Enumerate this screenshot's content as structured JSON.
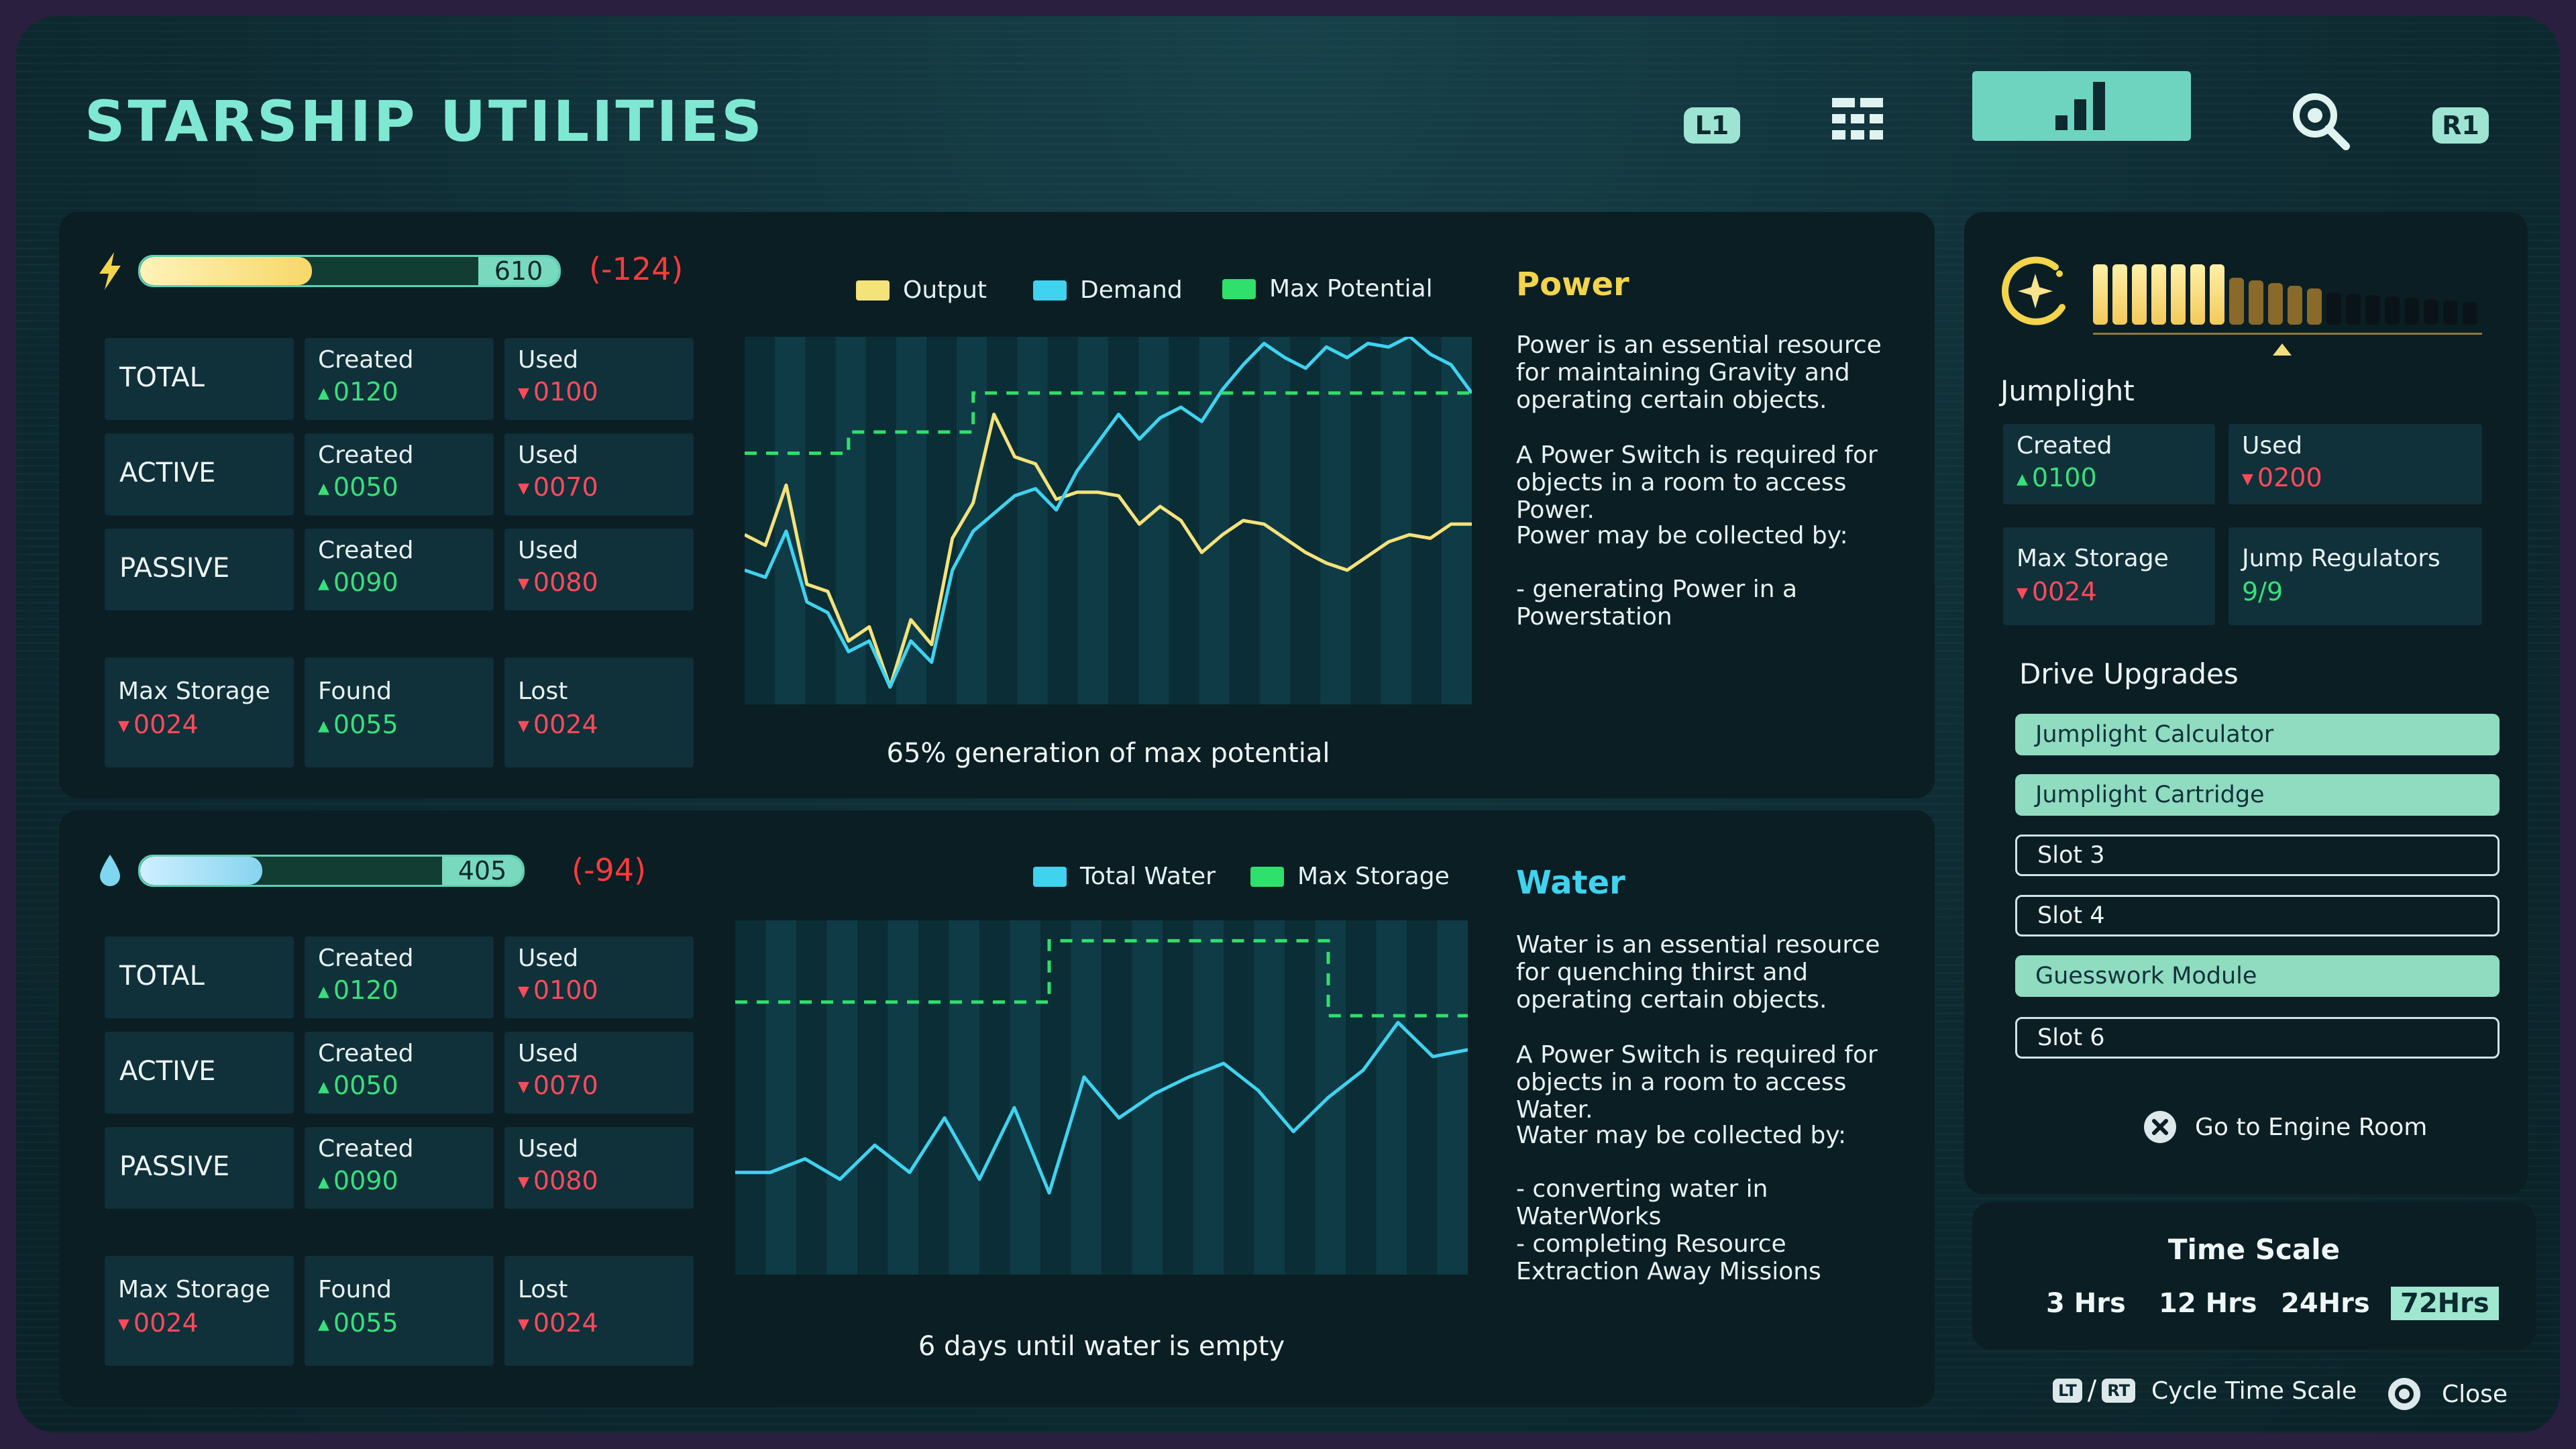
{
  "header": {
    "title": "STARSHIP UTILITIES",
    "left_bumper": "L1",
    "right_bumper": "R1",
    "icons": [
      "grid-icon",
      "chart-icon",
      "search-icon"
    ]
  },
  "power": {
    "icon": "lightning-icon",
    "bar_value": "610",
    "bar_fraction": 0.41,
    "delta": "(-124)",
    "rows": [
      {
        "label": "TOTAL",
        "created_label": "Created",
        "created": "0120",
        "used_label": "Used",
        "used": "0100"
      },
      {
        "label": "ACTIVE",
        "created_label": "Created",
        "created": "0050",
        "used_label": "Used",
        "used": "0070"
      },
      {
        "label": "PASSIVE",
        "created_label": "Created",
        "created": "0090",
        "used_label": "Used",
        "used": "0080"
      }
    ],
    "footer": [
      {
        "label": "Max Storage",
        "value": "0024",
        "dir": "down"
      },
      {
        "label": "Found",
        "value": "0055",
        "dir": "up"
      },
      {
        "label": "Lost",
        "value": "0024",
        "dir": "down"
      }
    ],
    "legend": [
      "Output",
      "Demand",
      "Max Potential"
    ],
    "caption": "65% generation of max potential",
    "section_title": "Power",
    "description": [
      "Power is an essential resource for maintaining Gravity and operating certain objects.",
      "A Power Switch is required for objects in a room to access Power.",
      "Power may be collected by:",
      "- generating Power in a Powerstation"
    ]
  },
  "water": {
    "icon": "water-drop-icon",
    "bar_value": "405",
    "bar_fraction": 0.32,
    "delta": "(-94)",
    "rows": [
      {
        "label": "TOTAL",
        "created_label": "Created",
        "created": "0120",
        "used_label": "Used",
        "used": "0100"
      },
      {
        "label": "ACTIVE",
        "created_label": "Created",
        "created": "0050",
        "used_label": "Used",
        "used": "0070"
      },
      {
        "label": "PASSIVE",
        "created_label": "Created",
        "created": "0090",
        "used_label": "Used",
        "used": "0080"
      }
    ],
    "footer": [
      {
        "label": "Max Storage",
        "value": "0024",
        "dir": "down"
      },
      {
        "label": "Found",
        "value": "0055",
        "dir": "up"
      },
      {
        "label": "Lost",
        "value": "0024",
        "dir": "down"
      }
    ],
    "legend": [
      "Total Water",
      "Max Storage"
    ],
    "caption": "6 days until water is empty",
    "section_title": "Water",
    "description": [
      "Water is an essential resource for quenching thirst and operating certain objects.",
      "A Power Switch is required for objects in a room to access Water.",
      "Water may be collected by:",
      "- converting water in WaterWorks\n- completing Resource Extraction Away Missions"
    ]
  },
  "jumplight": {
    "icon": "sparkle-moon-icon",
    "title": "Jumplight",
    "created_label": "Created",
    "created": "0100",
    "used_label": "Used",
    "used": "0200",
    "max_storage_label": "Max Storage",
    "max_storage": "0024",
    "regulators_label": "Jump Regulators",
    "regulators": "9/9",
    "segments_total": 20,
    "segments_bright": 7,
    "segments_dim": 5,
    "upgrades_title": "Drive Upgrades",
    "upgrades": [
      {
        "label": "Jumplight Calculator",
        "filled": true
      },
      {
        "label": "Jumplight Cartridge",
        "filled": true
      },
      {
        "label": "Slot 3",
        "filled": false
      },
      {
        "label": "Slot 4",
        "filled": false
      },
      {
        "label": "Guesswork Module",
        "filled": true
      },
      {
        "label": "Slot 6",
        "filled": false
      }
    ],
    "engine_room": "Go to Engine Room"
  },
  "time_scale": {
    "title": "Time Scale",
    "options": [
      "3 Hrs",
      "12 Hrs",
      "24Hrs",
      "72Hrs"
    ],
    "selected": "72Hrs"
  },
  "hints": {
    "lt": "LT",
    "rt": "RT",
    "slash": "/",
    "cycle": "Cycle Time Scale",
    "close": "Close"
  },
  "colors": {
    "output": "#f4e27a",
    "demand": "#3fd3f0",
    "max_potential": "#2fe06a",
    "total_water": "#3fd3f0",
    "max_storage": "#2fe06a",
    "accent": "#7fe8d3"
  },
  "chart_data": [
    {
      "type": "line",
      "x": [
        0,
        1,
        2,
        3,
        4,
        5,
        6,
        7,
        8,
        9,
        10,
        11,
        12,
        13,
        14,
        15,
        16,
        17,
        18,
        19,
        20,
        21,
        22,
        23,
        24,
        25,
        26,
        27,
        28,
        29,
        30,
        31,
        32,
        33,
        34,
        35
      ],
      "ylim": [
        0,
        100
      ],
      "series": [
        {
          "name": "Output",
          "values": [
            46,
            43,
            60,
            32,
            30,
            16,
            20,
            3,
            22,
            15,
            45,
            55,
            80,
            68,
            66,
            56,
            58,
            58,
            57,
            49,
            54,
            50,
            41,
            46,
            50,
            49,
            45,
            41,
            38,
            36,
            40,
            44,
            46,
            45,
            49,
            49
          ]
        },
        {
          "name": "Demand",
          "values": [
            36,
            34,
            47,
            27,
            24,
            13,
            16,
            3,
            16,
            10,
            36,
            47,
            52,
            57,
            59,
            53,
            64,
            72,
            80,
            73,
            79,
            82,
            78,
            87,
            94,
            100,
            96,
            93,
            99,
            96,
            100,
            99,
            102,
            97,
            94,
            86
          ]
        },
        {
          "name": "Max Potential",
          "values": [
            69,
            69,
            69,
            69,
            69,
            75,
            75,
            75,
            75,
            75,
            75,
            86,
            86,
            86,
            86,
            86,
            86,
            86,
            86,
            86,
            86,
            86,
            86,
            86,
            86,
            86,
            86,
            86,
            86,
            86,
            86,
            86,
            86,
            86,
            86,
            86
          ]
        }
      ]
    },
    {
      "type": "line",
      "x": [
        0,
        1,
        2,
        3,
        4,
        5,
        6,
        7,
        8,
        9,
        10,
        11,
        12,
        13,
        14,
        15,
        16,
        17,
        18,
        19,
        20,
        21
      ],
      "ylim": [
        0,
        100
      ],
      "series": [
        {
          "name": "Total Water",
          "values": [
            28,
            28,
            32,
            26,
            36,
            28,
            44,
            26,
            47,
            22,
            56,
            44,
            51,
            56,
            60,
            52,
            40,
            50,
            58,
            72,
            62,
            64
          ]
        },
        {
          "name": "Max Storage",
          "values": [
            78,
            78,
            78,
            78,
            78,
            78,
            78,
            78,
            78,
            96,
            96,
            96,
            96,
            96,
            96,
            96,
            96,
            74,
            74,
            74,
            74,
            74
          ]
        }
      ]
    }
  ]
}
